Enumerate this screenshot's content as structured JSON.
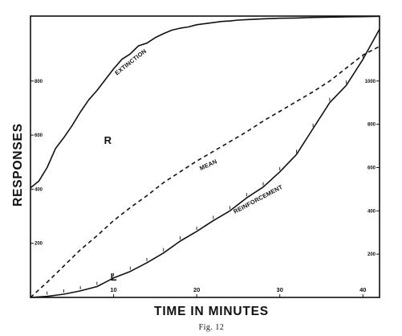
{
  "chart_data": {
    "type": "line",
    "xlabel": "TIME IN MINUTES",
    "ylabel": "RESPONSES",
    "caption": "Fig. 12",
    "xlim": [
      0,
      42
    ],
    "x_ticks": [
      10,
      20,
      30,
      40
    ],
    "y_left": {
      "lim": [
        0,
        1040
      ],
      "ticks": [
        200,
        400,
        600,
        800
      ]
    },
    "y_right": {
      "lim": [
        0,
        1300
      ],
      "ticks": [
        200,
        400,
        600,
        800,
        1000
      ]
    },
    "grid": false,
    "series": [
      {
        "name": "EXTINCTION",
        "letter": "R",
        "axis": "left",
        "style": "solid",
        "x": [
          0,
          1,
          2,
          3,
          4,
          5,
          6,
          7,
          8,
          9,
          10,
          11,
          12,
          13,
          14,
          15,
          16,
          17,
          18,
          19,
          20,
          21,
          22,
          23,
          24,
          25,
          26,
          28,
          30,
          32,
          34,
          36,
          38,
          40,
          42
        ],
        "y": [
          405,
          430,
          480,
          550,
          590,
          635,
          685,
          730,
          765,
          805,
          845,
          880,
          900,
          930,
          940,
          960,
          975,
          988,
          995,
          1000,
          1008,
          1012,
          1016,
          1020,
          1022,
          1025,
          1027,
          1030,
          1032,
          1033,
          1035,
          1036,
          1037,
          1038,
          1039
        ]
      },
      {
        "name": "MEAN",
        "axis": "right",
        "style": "dashed",
        "x": [
          0,
          2,
          4,
          6,
          8,
          10,
          12,
          14,
          16,
          18,
          20,
          22,
          24,
          26,
          28,
          30,
          32,
          34,
          36,
          38,
          40,
          42
        ],
        "y": [
          0,
          70,
          145,
          220,
          285,
          355,
          415,
          470,
          530,
          580,
          630,
          675,
          720,
          765,
          815,
          860,
          905,
          950,
          1000,
          1060,
          1120,
          1160
        ]
      },
      {
        "name": "REINFORCEMENT",
        "letter": "L",
        "axis": "right",
        "style": "solid",
        "x": [
          0,
          2,
          4,
          6,
          8,
          10,
          12,
          14,
          16,
          18,
          20,
          22,
          24,
          26,
          28,
          30,
          32,
          34,
          36,
          38,
          40,
          42
        ],
        "y": [
          0,
          5,
          15,
          30,
          50,
          90,
          120,
          160,
          205,
          260,
          305,
          355,
          400,
          460,
          510,
          580,
          660,
          780,
          900,
          980,
          1100,
          1240
        ]
      }
    ]
  }
}
